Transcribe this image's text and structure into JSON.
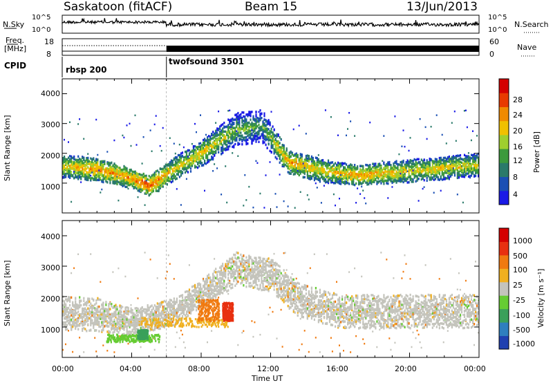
{
  "header": {
    "title": "Saskatoon (fitACF)",
    "beam": "Beam 15",
    "date": "13/Jun/2013"
  },
  "top_panels": {
    "nsky_label": "N.Sky",
    "nsearch_label": "N.Search",
    "nsky_ticks": [
      "10^5",
      "10^0"
    ],
    "nsearch_ticks": [
      "10^5",
      "10^0"
    ],
    "freq_label_line1": "Freq.",
    "freq_label_line2": "[MHz]",
    "freq_ticks": [
      "18",
      "8"
    ],
    "nave_label": "Nave",
    "nave_ticks": [
      "60",
      "0"
    ],
    "cpid_label": "CPID",
    "cpid_modes": [
      {
        "name": "rbsp 200",
        "start_hour": 0
      },
      {
        "name": "twofsound 3501",
        "start_hour": 6
      }
    ]
  },
  "chart_data": [
    {
      "type": "heatmap",
      "title": "",
      "ylabel": "Slant Range [km]",
      "xlabel": "",
      "xlim": [
        0,
        24
      ],
      "ylim": [
        0,
        4500
      ],
      "yticks": [
        "1000",
        "2000",
        "3000",
        "4000"
      ],
      "colorbar": {
        "label": "Power [dB]",
        "ticks": [
          "4",
          "8",
          "12",
          "16",
          "20",
          "24",
          "28"
        ],
        "colors": [
          "#1a1ae6",
          "#1a4fb4",
          "#2a7a6a",
          "#3c9a3c",
          "#9fcf2f",
          "#f0c000",
          "#f08a00",
          "#e83a00",
          "#d40000"
        ]
      },
      "bands": [
        {
          "hour": 0.0,
          "center_km": 1550,
          "width_km": 350,
          "level": 5
        },
        {
          "hour": 2.0,
          "center_km": 1450,
          "width_km": 350,
          "level": 6
        },
        {
          "hour": 4.0,
          "center_km": 1150,
          "width_km": 300,
          "level": 6
        },
        {
          "hour": 5.0,
          "center_km": 900,
          "width_km": 300,
          "level": 7
        },
        {
          "hour": 6.5,
          "center_km": 1500,
          "width_km": 350,
          "level": 5
        },
        {
          "hour": 8.0,
          "center_km": 2000,
          "width_km": 400,
          "level": 5
        },
        {
          "hour": 10.0,
          "center_km": 2800,
          "width_km": 500,
          "level": 4
        },
        {
          "hour": 11.5,
          "center_km": 2900,
          "width_km": 500,
          "level": 3
        },
        {
          "hour": 13.0,
          "center_km": 1700,
          "width_km": 350,
          "level": 6
        },
        {
          "hour": 15.0,
          "center_km": 1400,
          "width_km": 350,
          "level": 5
        },
        {
          "hour": 17.0,
          "center_km": 1250,
          "width_km": 300,
          "level": 6
        },
        {
          "hour": 20.0,
          "center_km": 1400,
          "width_km": 350,
          "level": 5
        },
        {
          "hour": 24.0,
          "center_km": 1600,
          "width_km": 350,
          "level": 5
        }
      ]
    },
    {
      "type": "heatmap",
      "title": "",
      "ylabel": "Slant Range [km]",
      "xlabel": "Time UT",
      "xlim": [
        0,
        24
      ],
      "ylim": [
        0,
        4500
      ],
      "yticks": [
        "1000",
        "2000",
        "3000",
        "4000"
      ],
      "xticks": [
        "00:00",
        "04:00",
        "08:00",
        "12:00",
        "16:00",
        "20:00",
        "00:00"
      ],
      "colorbar": {
        "label": "Velocity [m s⁻¹]",
        "ticks": [
          "1000",
          "500",
          "100",
          "25",
          "-25",
          "-100",
          "-500",
          "-1000"
        ],
        "colors": [
          "#2040b0",
          "#2f7fbf",
          "#3aa05a",
          "#66cc33",
          "#c4c4bc",
          "#f0b020",
          "#f07a10",
          "#e83010",
          "#d40000"
        ]
      },
      "bands": [
        {
          "hour": 0.0,
          "center_km": 1450,
          "width_km": 500,
          "level": 4
        },
        {
          "hour": 2.0,
          "center_km": 1400,
          "width_km": 500,
          "level": 4
        },
        {
          "hour": 4.0,
          "center_km": 1150,
          "width_km": 400,
          "level": 4
        },
        {
          "hour": 6.5,
          "center_km": 1500,
          "width_km": 400,
          "level": 4
        },
        {
          "hour": 8.0,
          "center_km": 2100,
          "width_km": 400,
          "level": 4
        },
        {
          "hour": 10.0,
          "center_km": 2900,
          "width_km": 500,
          "level": 4
        },
        {
          "hour": 12.0,
          "center_km": 2700,
          "width_km": 500,
          "level": 4
        },
        {
          "hour": 13.5,
          "center_km": 1900,
          "width_km": 500,
          "level": 4
        },
        {
          "hour": 16.0,
          "center_km": 1500,
          "width_km": 500,
          "level": 4
        },
        {
          "hour": 20.0,
          "center_km": 1500,
          "width_km": 500,
          "level": 4
        },
        {
          "hour": 24.0,
          "center_km": 1500,
          "width_km": 500,
          "level": 4
        }
      ],
      "patches": [
        {
          "h0": 2.5,
          "h1": 5.6,
          "r0": 500,
          "r1": 750,
          "level": 3
        },
        {
          "h0": 4.3,
          "h1": 4.9,
          "r0": 600,
          "r1": 900,
          "level": 2
        },
        {
          "h0": 4.5,
          "h1": 9.5,
          "r0": 1000,
          "r1": 1300,
          "level": 5
        },
        {
          "h0": 7.8,
          "h1": 9.0,
          "r0": 1200,
          "r1": 1900,
          "level": 6
        },
        {
          "h0": 9.2,
          "h1": 9.8,
          "r0": 1200,
          "r1": 1800,
          "level": 7
        }
      ]
    }
  ]
}
